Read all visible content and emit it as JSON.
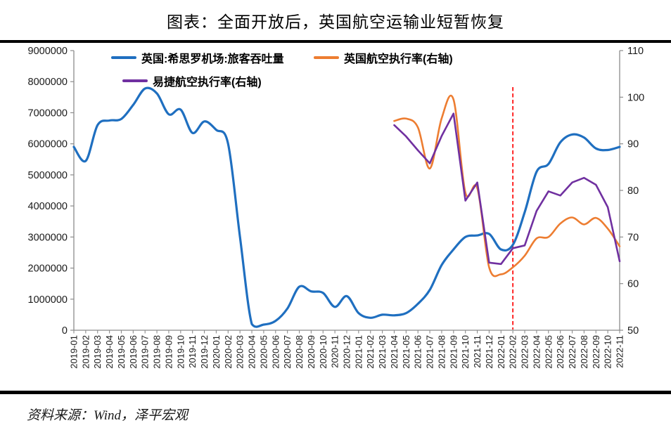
{
  "title": "图表：全面开放后，英国航空运输业短暂恢复",
  "source_note": "资料来源：Wind，泽平宏观",
  "legend": [
    {
      "label": "英国:希思罗机场:旅客吞吐量",
      "color": "#1F6FC0"
    },
    {
      "label": "英国航空执行率(右轴)",
      "color": "#ED7D31"
    },
    {
      "label": "易捷航空执行率(右轴)",
      "color": "#7030A0"
    }
  ],
  "chart_data": {
    "type": "line",
    "x": [
      "2019-01",
      "2019-02",
      "2019-03",
      "2019-04",
      "2019-05",
      "2019-06",
      "2019-07",
      "2019-08",
      "2019-09",
      "2019-10",
      "2019-11",
      "2019-12",
      "2020-01",
      "2020-02",
      "2020-03",
      "2020-04",
      "2020-05",
      "2020-06",
      "2020-07",
      "2020-08",
      "2020-09",
      "2020-10",
      "2020-11",
      "2020-12",
      "2021-01",
      "2021-02",
      "2021-03",
      "2021-04",
      "2021-05",
      "2021-06",
      "2021-07",
      "2021-08",
      "2021-09",
      "2021-10",
      "2021-11",
      "2021-12",
      "2022-01",
      "2022-02",
      "2022-03",
      "2022-04",
      "2022-05",
      "2022-06",
      "2022-07",
      "2022-08",
      "2022-09",
      "2022-10",
      "2022-11"
    ],
    "left_axis": {
      "min": 0,
      "max": 9000000,
      "step": 1000000,
      "tick_labels": [
        "0",
        "1000000",
        "2000000",
        "3000000",
        "4000000",
        "5000000",
        "6000000",
        "7000000",
        "8000000",
        "9000000"
      ]
    },
    "right_axis": {
      "min": 50,
      "max": 110,
      "step": 10,
      "tick_labels": [
        "50",
        "60",
        "70",
        "80",
        "90",
        "100",
        "110"
      ]
    },
    "series": [
      {
        "name": "英国:希思罗机场:旅客吞吐量",
        "axis": "left",
        "color": "#1F6FC0",
        "width": 3.2,
        "smooth": true,
        "values": [
          5900000,
          5450000,
          6600000,
          6750000,
          6800000,
          7250000,
          7780000,
          7620000,
          6950000,
          7100000,
          6350000,
          6720000,
          6450000,
          6000000,
          3000000,
          200000,
          180000,
          300000,
          700000,
          1400000,
          1250000,
          1200000,
          750000,
          1100000,
          550000,
          400000,
          500000,
          480000,
          550000,
          850000,
          1300000,
          2100000,
          2600000,
          3000000,
          3050000,
          3100000,
          2600000,
          2750000,
          3800000,
          5100000,
          5350000,
          6050000,
          6300000,
          6200000,
          5850000,
          5800000,
          5900000
        ]
      },
      {
        "name": "英国航空执行率(右轴)",
        "axis": "right",
        "color": "#ED7D31",
        "width": 2.6,
        "smooth": true,
        "values": [
          null,
          null,
          null,
          null,
          null,
          null,
          null,
          null,
          null,
          null,
          null,
          null,
          null,
          null,
          null,
          null,
          null,
          null,
          null,
          null,
          null,
          null,
          null,
          null,
          null,
          null,
          null,
          94.9,
          95.4,
          93.5,
          84.7,
          95.5,
          99.5,
          79.5,
          80.5,
          63.5,
          62.0,
          63.5,
          66.0,
          69.7,
          70.0,
          72.9,
          74.2,
          72.7,
          74.1,
          71.8,
          68.0
        ]
      },
      {
        "name": "易捷航空执行率(右轴)",
        "axis": "right",
        "color": "#7030A0",
        "width": 2.6,
        "smooth": false,
        "values": [
          null,
          null,
          null,
          null,
          null,
          null,
          null,
          null,
          null,
          null,
          null,
          null,
          null,
          null,
          null,
          null,
          null,
          null,
          null,
          null,
          null,
          null,
          null,
          null,
          null,
          null,
          null,
          94.0,
          91.6,
          88.6,
          85.8,
          91.7,
          96.5,
          77.8,
          81.7,
          64.5,
          64.2,
          67.6,
          68.2,
          75.6,
          79.8,
          78.9,
          81.7,
          82.7,
          81.2,
          76.4,
          64.8
        ]
      }
    ],
    "vline": {
      "x_label": "2022-02",
      "x_index": 37,
      "color": "#FF0000",
      "style": "dashed"
    },
    "axis_color": "#8C8C8C",
    "label_color": "#1a1a1a",
    "legend_position": "top",
    "grid": false
  }
}
